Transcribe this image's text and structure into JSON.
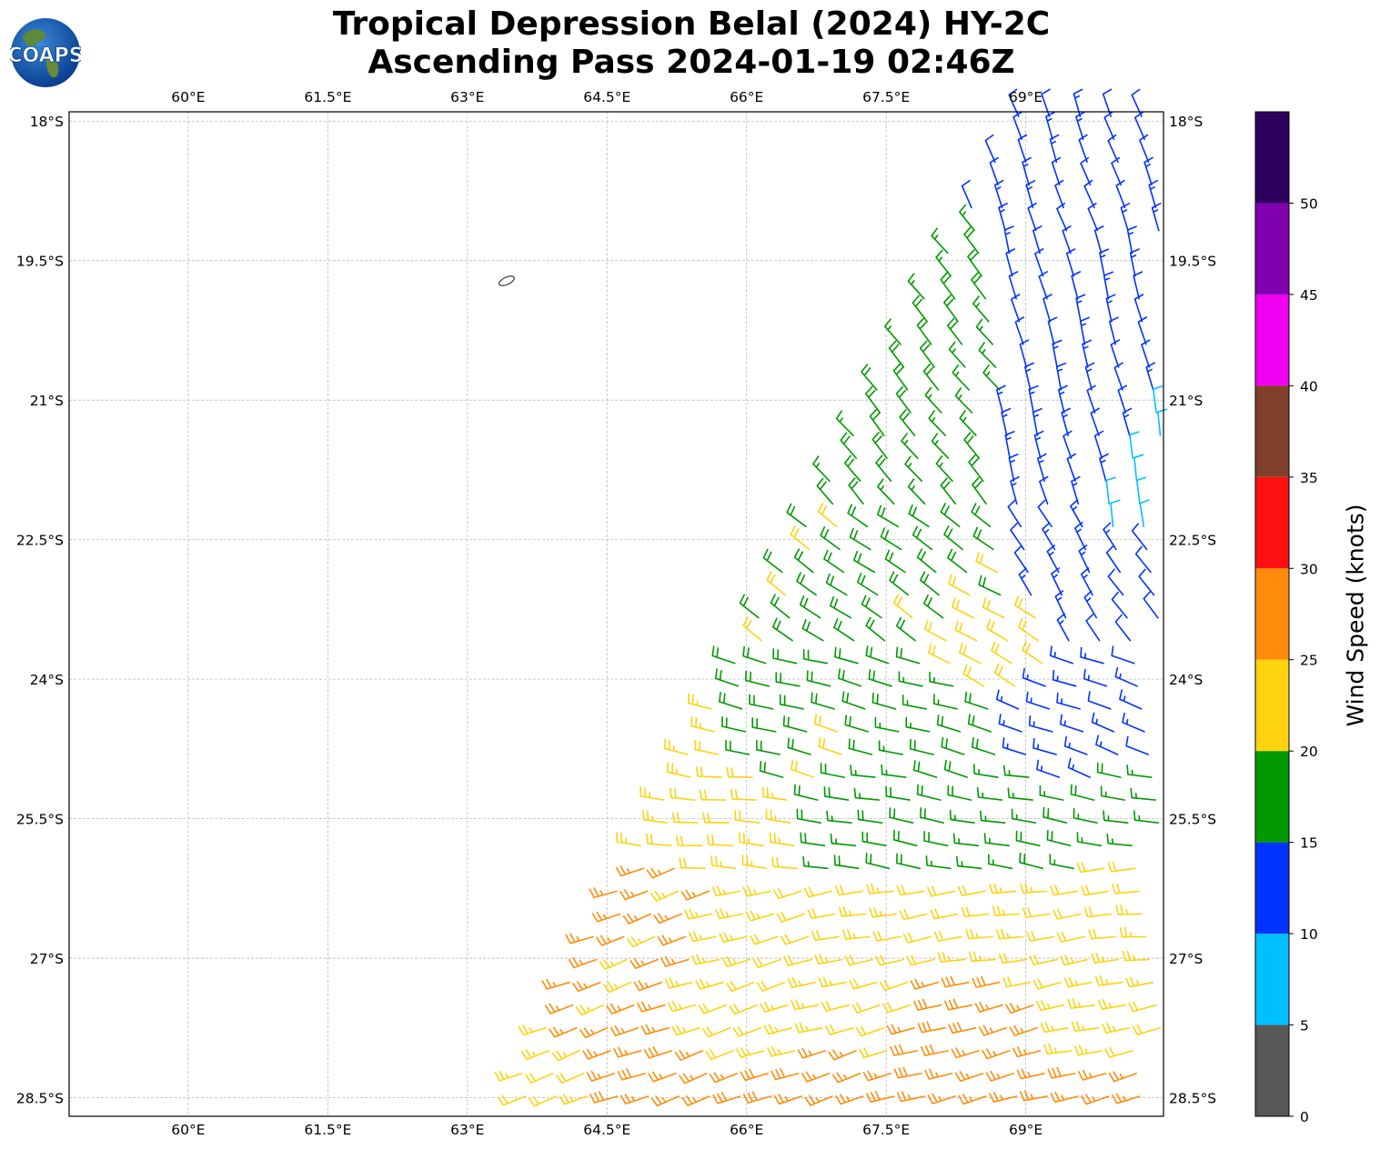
{
  "title": {
    "line1": "Tropical Depression Belal (2024) HY-2C",
    "line2": "Ascending Pass 2024-01-19 02:46Z"
  },
  "logo": {
    "text": "COAPS"
  },
  "chart_data": {
    "type": "barb",
    "title": "Tropical Depression Belal (2024) HY-2C Ascending Pass 2024-01-19 02:46Z",
    "xlim": [
      58.72,
      70.48
    ],
    "ylim": [
      -28.7,
      -17.9
    ],
    "xticks": [
      {
        "v": 60,
        "label": "60°E"
      },
      {
        "v": 61.5,
        "label": "61.5°E"
      },
      {
        "v": 63,
        "label": "63°E"
      },
      {
        "v": 64.5,
        "label": "64.5°E"
      },
      {
        "v": 66,
        "label": "66°E"
      },
      {
        "v": 67.5,
        "label": "67.5°E"
      },
      {
        "v": 69,
        "label": "69°E"
      }
    ],
    "yticks": [
      {
        "v": -18,
        "label": "18°S"
      },
      {
        "v": -19.5,
        "label": "19.5°S"
      },
      {
        "v": -21,
        "label": "21°S"
      },
      {
        "v": -22.5,
        "label": "22.5°S"
      },
      {
        "v": -24,
        "label": "24°S"
      },
      {
        "v": -25.5,
        "label": "25.5°S"
      },
      {
        "v": -27,
        "label": "27°S"
      },
      {
        "v": -28.5,
        "label": "28.5°S"
      }
    ],
    "grid": true,
    "swath_west_edge": [
      {
        "lat": -17.9,
        "lon": 68.9
      },
      {
        "lat": -28.7,
        "lon": 63.3
      }
    ],
    "samples": [
      {
        "lat": -18.5,
        "lon": 69.5,
        "spd": 12,
        "dir": 340
      },
      {
        "lat": -20,
        "lon": 68,
        "spd": 17,
        "dir": 320
      },
      {
        "lat": -20,
        "lon": 69.5,
        "spd": 12,
        "dir": 345
      },
      {
        "lat": -21.5,
        "lon": 66.5,
        "spd": 17,
        "dir": 315
      },
      {
        "lat": -21.5,
        "lon": 68,
        "spd": 18,
        "dir": 320
      },
      {
        "lat": -21.5,
        "lon": 69.5,
        "spd": 13,
        "dir": 345
      },
      {
        "lat": -22,
        "lon": 70.4,
        "spd": 8,
        "dir": 350
      },
      {
        "lat": -23,
        "lon": 65.5,
        "spd": 18,
        "dir": 300
      },
      {
        "lat": -23,
        "lon": 66.5,
        "spd": 19,
        "dir": 305
      },
      {
        "lat": -23,
        "lon": 67.8,
        "spd": 19,
        "dir": 305
      },
      {
        "lat": -23.5,
        "lon": 68.6,
        "spd": 21,
        "dir": 300
      },
      {
        "lat": -23,
        "lon": 69.6,
        "spd": 13,
        "dir": 330
      },
      {
        "lat": -23,
        "lon": 70.3,
        "spd": 12,
        "dir": 325
      },
      {
        "lat": -24.7,
        "lon": 65,
        "spd": 22,
        "dir": 280
      },
      {
        "lat": -24.5,
        "lon": 66.5,
        "spd": 19,
        "dir": 285
      },
      {
        "lat": -24.5,
        "lon": 68,
        "spd": 18,
        "dir": 285
      },
      {
        "lat": -24.5,
        "lon": 69.5,
        "spd": 14,
        "dir": 290
      },
      {
        "lat": -24.5,
        "lon": 70.3,
        "spd": 12,
        "dir": 290
      },
      {
        "lat": -25.5,
        "lon": 64.5,
        "spd": 22,
        "dir": 275
      },
      {
        "lat": -25.7,
        "lon": 66,
        "spd": 22,
        "dir": 275
      },
      {
        "lat": -25.5,
        "lon": 67.5,
        "spd": 18,
        "dir": 280
      },
      {
        "lat": -25.6,
        "lon": 69,
        "spd": 17,
        "dir": 280
      },
      {
        "lat": -25.3,
        "lon": 70.3,
        "spd": 17,
        "dir": 280
      },
      {
        "lat": -26.6,
        "lon": 63.5,
        "spd": 27,
        "dir": 250
      },
      {
        "lat": -26.6,
        "lon": 65,
        "spd": 26,
        "dir": 250
      },
      {
        "lat": -26.6,
        "lon": 66.2,
        "spd": 23,
        "dir": 255
      },
      {
        "lat": -26.6,
        "lon": 67.5,
        "spd": 22,
        "dir": 260
      },
      {
        "lat": -26.5,
        "lon": 69,
        "spd": 22,
        "dir": 262
      },
      {
        "lat": -26.5,
        "lon": 70.3,
        "spd": 22,
        "dir": 265
      },
      {
        "lat": -27.6,
        "lon": 63.4,
        "spd": 23,
        "dir": 250
      },
      {
        "lat": -27.5,
        "lon": 64.5,
        "spd": 26,
        "dir": 250
      },
      {
        "lat": -27.6,
        "lon": 66,
        "spd": 23,
        "dir": 252
      },
      {
        "lat": -27.4,
        "lon": 67.2,
        "spd": 22,
        "dir": 255
      },
      {
        "lat": -27.9,
        "lon": 68.5,
        "spd": 27,
        "dir": 255
      },
      {
        "lat": -27.5,
        "lon": 70,
        "spd": 23,
        "dir": 258
      },
      {
        "lat": -28.5,
        "lon": 63.5,
        "spd": 23,
        "dir": 250
      },
      {
        "lat": -28.4,
        "lon": 65.7,
        "spd": 27,
        "dir": 250
      },
      {
        "lat": -28.5,
        "lon": 67,
        "spd": 27,
        "dir": 252
      },
      {
        "lat": -28.5,
        "lon": 68.6,
        "spd": 26,
        "dir": 255
      },
      {
        "lat": -28.5,
        "lon": 70,
        "spd": 27,
        "dir": 255
      }
    ],
    "colorbar": {
      "label": "Wind Speed (knots)",
      "range": [
        0,
        55
      ],
      "ticks": [
        "0",
        "5",
        "10",
        "15",
        "20",
        "25",
        "30",
        "35",
        "40",
        "45",
        "50"
      ],
      "bins": [
        {
          "from": 0,
          "to": 5,
          "color": "#575757"
        },
        {
          "from": 5,
          "to": 10,
          "color": "#00BFFF"
        },
        {
          "from": 10,
          "to": 15,
          "color": "#0033FF"
        },
        {
          "from": 15,
          "to": 20,
          "color": "#009900"
        },
        {
          "from": 20,
          "to": 25,
          "color": "#FFD20F"
        },
        {
          "from": 25,
          "to": 30,
          "color": "#FF8C0A"
        },
        {
          "from": 30,
          "to": 35,
          "color": "#FF1010"
        },
        {
          "from": 35,
          "to": 40,
          "color": "#7F3F2A"
        },
        {
          "from": 40,
          "to": 45,
          "color": "#F000F0"
        },
        {
          "from": 45,
          "to": 50,
          "color": "#8000B0"
        },
        {
          "from": 50,
          "to": 55,
          "color": "#2D0060"
        }
      ]
    }
  }
}
